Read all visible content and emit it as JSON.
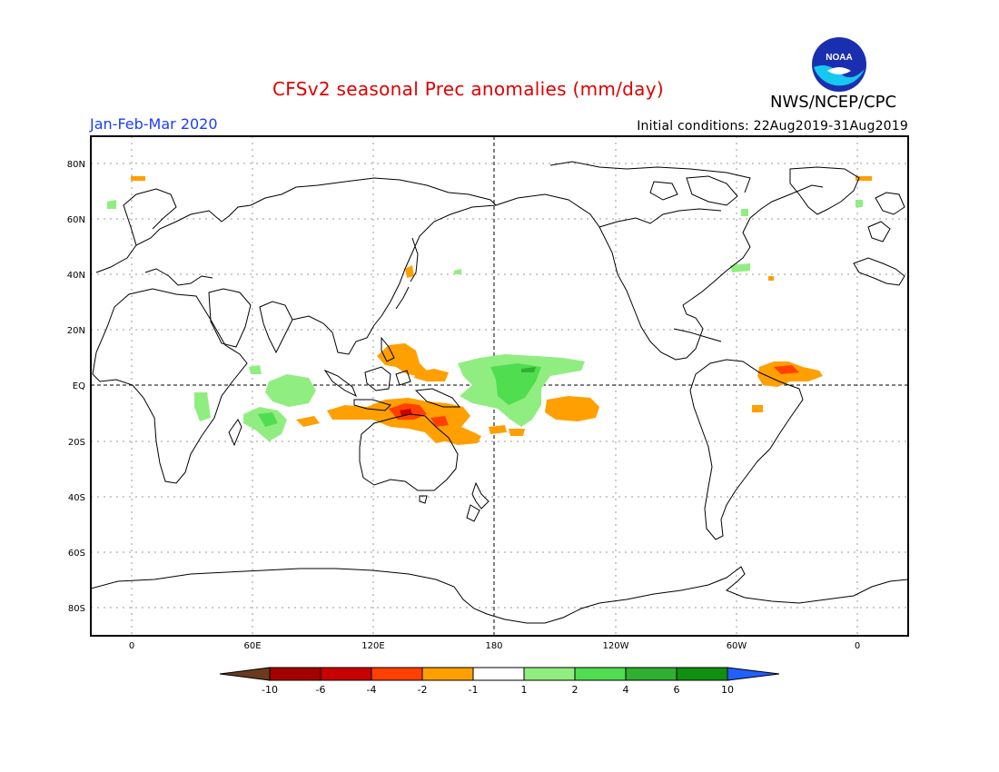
{
  "title": "CFSv2 seasonal Prec anomalies (mm/day)",
  "agency": "NWS/NCEP/CPC",
  "period": "Jan-Feb-Mar 2020",
  "initial_conditions": "Initial conditions: 22Aug2019-31Aug2019",
  "logo_text": "NOAA",
  "map": {
    "lon_labels": [
      "0",
      "60E",
      "120E",
      "180",
      "120W",
      "60W",
      "0"
    ],
    "lat_labels": [
      "80N",
      "60N",
      "40N",
      "20N",
      "EQ",
      "20S",
      "40S",
      "60S",
      "80S"
    ]
  },
  "colorbar": {
    "tick_labels": [
      "-10",
      "-6",
      "-4",
      "-2",
      "-1",
      "1",
      "2",
      "4",
      "6",
      "10"
    ],
    "colors": [
      "#6b3a1e",
      "#a50000",
      "#c80000",
      "#ff4000",
      "#ff9f00",
      "#ffffff",
      "#90ee80",
      "#50dd50",
      "#30b030",
      "#109010",
      "#2060ff"
    ]
  },
  "anomaly_colors": {
    "dry_weak": "#ff9f00",
    "dry_moderate": "#ff4000",
    "dry_strong": "#c80000",
    "wet_weak": "#90ee80",
    "wet_moderate": "#50dd50",
    "wet_strong": "#30b030"
  }
}
